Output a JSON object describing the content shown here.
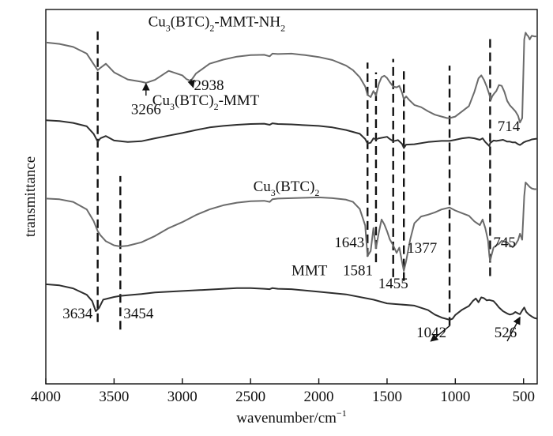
{
  "chart_data": {
    "type": "line",
    "title": "",
    "xlabel": "wavenumber/cm",
    "xlabel_superscript": "−1",
    "ylabel": "transmittance",
    "xlim": [
      4000,
      400
    ],
    "x_reversed": true,
    "y_axis_ticks": "none",
    "grid": false,
    "legend": "none",
    "x_ticks": [
      4000,
      3500,
      3000,
      2500,
      2000,
      1500,
      1000,
      500
    ],
    "line_colors": {
      "light": "#6b6b6b",
      "dark": "#2e2e2e"
    },
    "series": [
      {
        "name": "Cu3(BTC)2-MMT-NH2",
        "label_parts": [
          [
            "Cu",
            ""
          ],
          [
            "3",
            "sub"
          ],
          [
            "(BTC)",
            ""
          ],
          [
            "2",
            "sub"
          ],
          [
            "-MMT-NH",
            ""
          ],
          [
            "2",
            "sub"
          ]
        ],
        "color": "light",
        "x": [
          4000,
          3900,
          3800,
          3700,
          3650,
          3620,
          3600,
          3560,
          3500,
          3400,
          3300,
          3266,
          3200,
          3100,
          3000,
          2970,
          2938,
          2900,
          2800,
          2700,
          2600,
          2500,
          2400,
          2360,
          2340,
          2300,
          2200,
          2100,
          2000,
          1900,
          1800,
          1750,
          1700,
          1660,
          1643,
          1620,
          1600,
          1581,
          1560,
          1540,
          1520,
          1500,
          1480,
          1455,
          1430,
          1410,
          1390,
          1377,
          1360,
          1340,
          1300,
          1250,
          1200,
          1150,
          1100,
          1060,
          1042,
          1000,
          950,
          900,
          860,
          830,
          810,
          790,
          770,
          750,
          740,
          730,
          714,
          700,
          680,
          660,
          640,
          620,
          600,
          580,
          560,
          540,
          526,
          510,
          495,
          485,
          475,
          465,
          455,
          440,
          420,
          400
        ],
        "y": [
          91.2,
          90.8,
          90.0,
          88.2,
          85.4,
          83.8,
          84.4,
          85.5,
          83.2,
          81.3,
          80.7,
          80.4,
          81.2,
          83.6,
          82.4,
          81.4,
          80.9,
          82.9,
          85.5,
          86.6,
          87.4,
          87.8,
          87.9,
          87.5,
          88.2,
          88.1,
          88.2,
          87.8,
          87.3,
          86.5,
          85.0,
          83.8,
          81.9,
          79.4,
          77.2,
          76.6,
          78.2,
          77.0,
          80.2,
          81.9,
          82.3,
          81.7,
          80.6,
          79.4,
          79.2,
          79.6,
          77.8,
          76.0,
          76.8,
          75.9,
          74.5,
          73.9,
          72.8,
          71.9,
          71.4,
          71.0,
          71.0,
          71.4,
          72.8,
          74.2,
          78.0,
          81.6,
          82.4,
          81.2,
          79.4,
          77.2,
          75.8,
          76.8,
          77.6,
          78.2,
          79.8,
          79.6,
          78.0,
          75.6,
          74.4,
          73.6,
          72.8,
          71.6,
          69.8,
          71.0,
          92.0,
          93.8,
          93.2,
          92.8,
          92.0,
          93.0,
          92.8,
          92.8
        ]
      },
      {
        "name": "Cu3(BTC)2-MMT",
        "label_parts": [
          [
            "Cu",
            ""
          ],
          [
            "3",
            "sub"
          ],
          [
            "(BTC)",
            ""
          ],
          [
            "2",
            "sub"
          ],
          [
            "-MMT",
            ""
          ]
        ],
        "color": "dark",
        "x": [
          4000,
          3900,
          3800,
          3700,
          3650,
          3620,
          3600,
          3560,
          3500,
          3400,
          3300,
          3200,
          3100,
          3000,
          2900,
          2800,
          2700,
          2600,
          2500,
          2400,
          2360,
          2340,
          2300,
          2200,
          2100,
          2000,
          1900,
          1800,
          1700,
          1660,
          1643,
          1620,
          1600,
          1581,
          1560,
          1500,
          1480,
          1455,
          1420,
          1390,
          1377,
          1360,
          1300,
          1200,
          1100,
          1042,
          1000,
          950,
          900,
          860,
          820,
          800,
          780,
          750,
          745,
          720,
          700,
          680,
          650,
          620,
          600,
          580,
          560,
          540,
          526,
          510,
          500,
          480,
          460,
          440,
          420,
          400
        ],
        "y": [
          70.4,
          70.2,
          69.7,
          68.8,
          66.8,
          64.7,
          65.6,
          66.2,
          65.0,
          64.6,
          64.8,
          65.6,
          66.3,
          67.0,
          67.8,
          68.5,
          68.9,
          69.2,
          69.4,
          69.5,
          69.2,
          69.6,
          69.4,
          69.3,
          69.1,
          68.9,
          68.5,
          67.8,
          66.8,
          65.4,
          64.2,
          64.4,
          65.6,
          65.3,
          65.6,
          66.0,
          65.4,
          64.8,
          65.1,
          64.1,
          63.0,
          63.9,
          64.0,
          64.6,
          64.9,
          64.9,
          65.2,
          65.6,
          65.8,
          65.6,
          65.2,
          65.6,
          64.6,
          63.5,
          64.3,
          65.0,
          64.9,
          65.0,
          65.2,
          64.7,
          64.7,
          64.5,
          64.5,
          64.0,
          63.8,
          64.2,
          64.5,
          64.8,
          65.0,
          65.3,
          65.4,
          65.5
        ]
      },
      {
        "name": "Cu3(BTC)2",
        "label_parts": [
          [
            "Cu",
            ""
          ],
          [
            "3",
            "sub"
          ],
          [
            "(BTC)",
            ""
          ],
          [
            "2",
            "sub"
          ]
        ],
        "color": "light",
        "x": [
          4000,
          3900,
          3800,
          3700,
          3650,
          3620,
          3600,
          3560,
          3500,
          3454,
          3400,
          3300,
          3200,
          3100,
          3000,
          2900,
          2800,
          2700,
          2600,
          2500,
          2400,
          2360,
          2340,
          2300,
          2200,
          2100,
          2000,
          1900,
          1800,
          1750,
          1700,
          1660,
          1643,
          1620,
          1600,
          1581,
          1560,
          1540,
          1520,
          1500,
          1480,
          1455,
          1430,
          1410,
          1390,
          1377,
          1360,
          1330,
          1300,
          1250,
          1200,
          1150,
          1100,
          1042,
          1000,
          950,
          900,
          860,
          820,
          800,
          780,
          760,
          750,
          745,
          735,
          720,
          700,
          680,
          660,
          640,
          620,
          600,
          580,
          560,
          540,
          526,
          510,
          495,
          485,
          470,
          455,
          440,
          420,
          400
        ],
        "y": [
          49.5,
          49.3,
          48.6,
          46.6,
          43.5,
          40.8,
          39.7,
          38.1,
          37.0,
          36.7,
          36.9,
          37.8,
          39.5,
          41.6,
          43.2,
          45.1,
          46.6,
          47.7,
          48.4,
          48.8,
          48.9,
          48.6,
          49.3,
          49.5,
          49.6,
          49.7,
          49.8,
          49.6,
          49.2,
          48.6,
          46.7,
          42.3,
          34.1,
          35.5,
          41.6,
          36.2,
          40.5,
          43.9,
          42.6,
          40.8,
          38.6,
          37.0,
          35.0,
          36.4,
          32.6,
          30.2,
          32.8,
          38.6,
          42.9,
          44.7,
          45.2,
          45.8,
          46.6,
          47.1,
          46.3,
          45.6,
          44.9,
          43.4,
          42.4,
          43.9,
          41.6,
          38.2,
          34.1,
          32.8,
          34.3,
          36.4,
          37.0,
          37.4,
          38.2,
          38.0,
          37.8,
          37.1,
          36.5,
          37.2,
          38.4,
          40.1,
          38.5,
          50.2,
          53.8,
          53.2,
          52.6,
          52.2,
          52.0,
          52.0
        ]
      },
      {
        "name": "MMT",
        "label_parts": [
          [
            "MMT",
            ""
          ]
        ],
        "color": "dark",
        "x": [
          4000,
          3900,
          3800,
          3700,
          3660,
          3634,
          3610,
          3580,
          3500,
          3454,
          3400,
          3300,
          3200,
          3000,
          2800,
          2600,
          2500,
          2400,
          2360,
          2340,
          2300,
          2200,
          2000,
          1800,
          1600,
          1500,
          1400,
          1300,
          1200,
          1150,
          1100,
          1060,
          1042,
          1020,
          1000,
          950,
          900,
          870,
          850,
          830,
          810,
          790,
          770,
          750,
          720,
          700,
          680,
          650,
          620,
          600,
          580,
          560,
          540,
          526,
          510,
          495,
          480,
          460,
          440,
          420,
          400
        ],
        "y": [
          26.6,
          26.3,
          25.5,
          23.8,
          22.1,
          19.4,
          20.3,
          22.5,
          23.2,
          23.5,
          23.7,
          24.0,
          24.4,
          24.8,
          25.2,
          25.6,
          25.6,
          25.4,
          25.3,
          25.6,
          25.4,
          25.3,
          24.6,
          23.9,
          22.5,
          21.5,
          21.2,
          20.9,
          19.7,
          18.5,
          17.7,
          17.3,
          17.1,
          17.4,
          18.4,
          19.8,
          20.8,
          22.2,
          22.8,
          21.8,
          23.1,
          22.9,
          22.3,
          22.4,
          22.1,
          21.3,
          20.4,
          19.4,
          18.8,
          18.5,
          18.7,
          19.2,
          18.8,
          18.6,
          19.6,
          20.4,
          19.2,
          18.5,
          18.0,
          17.6,
          17.4
        ]
      }
    ],
    "reference_lines": [
      {
        "x": 3620,
        "y_from": 16.5,
        "y_to": 94.5
      },
      {
        "x": 3454,
        "y_from": 14.5,
        "y_to": 55.5
      },
      {
        "x": 1643,
        "y_from": 34.0,
        "y_to": 85.8
      },
      {
        "x": 1581,
        "y_from": 32.5,
        "y_to": 83.2
      },
      {
        "x": 1455,
        "y_from": 28.5,
        "y_to": 86.8
      },
      {
        "x": 1377,
        "y_from": 27.5,
        "y_to": 83.5
      },
      {
        "x": 1042,
        "y_from": 15.5,
        "y_to": 85.0
      },
      {
        "x": 745,
        "y_from": 28.8,
        "y_to": 93.0
      }
    ],
    "annotations": [
      {
        "text": "3634",
        "x": 3634,
        "y": 17.5,
        "anchor": "end"
      },
      {
        "text": "3454",
        "x": 3454,
        "y": 17.5,
        "anchor": "start"
      },
      {
        "text": "3266",
        "x": 3266,
        "y": 72.0,
        "anchor": "middle",
        "arrow_to": [
          3266,
          80.2
        ],
        "arrow_from": [
          3266,
          77.0
        ]
      },
      {
        "text": "2938",
        "x": 2938,
        "y": 78.5,
        "anchor": "start",
        "arrow_to": [
          2920,
          79.2
        ],
        "arrow_from": [
          2938,
          81.4
        ]
      },
      {
        "text": "1643",
        "x": 1643,
        "y": 36.5,
        "anchor": "end"
      },
      {
        "text": "1581",
        "x": 1581,
        "y": 29.0,
        "anchor": "end"
      },
      {
        "text": "1455",
        "x": 1455,
        "y": 25.5,
        "anchor": "middle"
      },
      {
        "text": "1377",
        "x": 1377,
        "y": 35.0,
        "anchor": "start"
      },
      {
        "text": "1042",
        "x": 1042,
        "y": 12.5,
        "anchor": "end",
        "arrow_to": [
          1180,
          11.4
        ],
        "arrow_from": [
          1042,
          15.5
        ]
      },
      {
        "text": "526",
        "x": 526,
        "y": 12.5,
        "anchor": "end",
        "arrow_to": [
          526,
          17.8
        ],
        "arrow_from": [
          620,
          11.4
        ]
      },
      {
        "text": "745",
        "x": 745,
        "y": 36.5,
        "anchor": "start"
      },
      {
        "text": "714",
        "x": 714,
        "y": 67.5,
        "anchor": "start"
      }
    ],
    "curve_labels": [
      {
        "series": 0,
        "x": 3250,
        "y": 95.5
      },
      {
        "series": 1,
        "x": 3220,
        "y": 74.5
      },
      {
        "series": 2,
        "x": 2480,
        "y": 51.5
      },
      {
        "series": 3,
        "x": 2200,
        "y": 29.0
      }
    ]
  }
}
